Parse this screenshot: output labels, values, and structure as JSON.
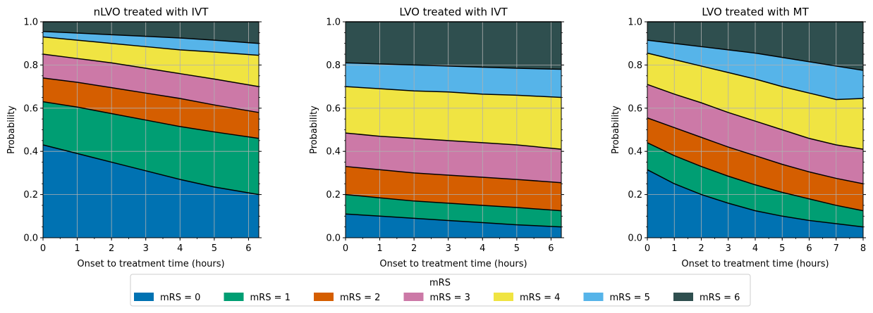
{
  "colors": [
    "#0072b2",
    "#009e73",
    "#d55e00",
    "#cc79a7",
    "#f0e442",
    "#56b4e9",
    "#2f4f4f"
  ],
  "legend": {
    "title": "mRS",
    "labels": [
      "mRS = 0",
      "mRS = 1",
      "mRS = 2",
      "mRS = 3",
      "mRS = 4",
      "mRS = 5",
      "mRS = 6"
    ]
  },
  "chart_data": [
    {
      "type": "area",
      "title": "nLVO treated with IVT",
      "xlabel": "Onset to treatment time (hours)",
      "ylabel": "Probability",
      "xlim": [
        0,
        6.3
      ],
      "ylim": [
        0,
        1
      ],
      "xticks": [
        "0",
        "1",
        "2",
        "3",
        "4",
        "5",
        "6"
      ],
      "yticks": [
        "0.0",
        "0.2",
        "0.4",
        "0.6",
        "0.8",
        "1.0"
      ],
      "grid": true,
      "stacked": true,
      "x": [
        0,
        1,
        2,
        3,
        4,
        5,
        6.3
      ],
      "cumulative": [
        [
          0.43,
          0.39,
          0.35,
          0.31,
          0.27,
          0.235,
          0.2
        ],
        [
          0.63,
          0.605,
          0.575,
          0.545,
          0.515,
          0.49,
          0.46
        ],
        [
          0.74,
          0.72,
          0.695,
          0.67,
          0.645,
          0.615,
          0.58
        ],
        [
          0.85,
          0.83,
          0.81,
          0.785,
          0.76,
          0.735,
          0.7
        ],
        [
          0.93,
          0.915,
          0.9,
          0.885,
          0.87,
          0.86,
          0.845
        ],
        [
          0.955,
          0.948,
          0.94,
          0.933,
          0.925,
          0.915,
          0.9
        ]
      ]
    },
    {
      "type": "area",
      "title": "LVO treated with IVT",
      "xlabel": "Onset to treatment time (hours)",
      "ylabel": "Probability",
      "xlim": [
        0,
        6.3
      ],
      "ylim": [
        0,
        1
      ],
      "xticks": [
        "0",
        "1",
        "2",
        "3",
        "4",
        "5",
        "6"
      ],
      "yticks": [
        "0.0",
        "0.2",
        "0.4",
        "0.6",
        "0.8",
        "1.0"
      ],
      "grid": true,
      "stacked": true,
      "x": [
        0,
        1,
        2,
        3,
        4,
        5,
        6.3
      ],
      "cumulative": [
        [
          0.11,
          0.1,
          0.09,
          0.08,
          0.07,
          0.06,
          0.05
        ],
        [
          0.2,
          0.185,
          0.17,
          0.16,
          0.15,
          0.14,
          0.125
        ],
        [
          0.33,
          0.315,
          0.3,
          0.29,
          0.28,
          0.27,
          0.255
        ],
        [
          0.485,
          0.47,
          0.46,
          0.45,
          0.44,
          0.43,
          0.41
        ],
        [
          0.7,
          0.69,
          0.68,
          0.675,
          0.665,
          0.66,
          0.65
        ],
        [
          0.81,
          0.805,
          0.8,
          0.795,
          0.79,
          0.785,
          0.78
        ]
      ]
    },
    {
      "type": "area",
      "title": "LVO treated with MT",
      "xlabel": "Onset to treatment time (hours)",
      "ylabel": "Probability",
      "xlim": [
        0,
        8
      ],
      "ylim": [
        0,
        1
      ],
      "xticks": [
        "0",
        "1",
        "2",
        "3",
        "4",
        "5",
        "6",
        "7",
        "8"
      ],
      "yticks": [
        "0.0",
        "0.2",
        "0.4",
        "0.6",
        "0.8",
        "1.0"
      ],
      "grid": true,
      "stacked": true,
      "x": [
        0,
        1,
        2,
        3,
        4,
        5,
        6,
        7,
        8
      ],
      "cumulative": [
        [
          0.315,
          0.25,
          0.2,
          0.16,
          0.125,
          0.1,
          0.08,
          0.065,
          0.05
        ],
        [
          0.44,
          0.38,
          0.33,
          0.285,
          0.245,
          0.21,
          0.18,
          0.15,
          0.125
        ],
        [
          0.555,
          0.51,
          0.465,
          0.42,
          0.38,
          0.34,
          0.305,
          0.275,
          0.25
        ],
        [
          0.71,
          0.665,
          0.625,
          0.58,
          0.54,
          0.5,
          0.46,
          0.43,
          0.41
        ],
        [
          0.855,
          0.825,
          0.795,
          0.765,
          0.735,
          0.7,
          0.67,
          0.64,
          0.645
        ],
        [
          0.915,
          0.9,
          0.885,
          0.87,
          0.855,
          0.835,
          0.815,
          0.795,
          0.775
        ]
      ]
    }
  ]
}
